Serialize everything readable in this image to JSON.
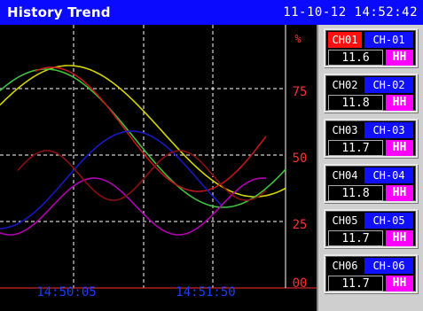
{
  "header": {
    "title": "History Trend",
    "datetime": "11-10-12 14:52:42"
  },
  "plot": {
    "unit": "%",
    "y_ticks": [
      "75",
      "50",
      "25",
      "00"
    ],
    "x_ticks": [
      "14:50:05",
      "14:51:50"
    ],
    "colors": {
      "background": "#000000",
      "grid": "#ffffff",
      "tick_labels": "#ff3030",
      "time_labels": "#1e3cff",
      "series": [
        "#d4d400",
        "#40c040",
        "#c01818",
        "#1818c0",
        "#b000b0",
        "#8a1010"
      ]
    }
  },
  "channels": [
    {
      "id": "CH01",
      "name": "CH-01",
      "value": "11.6",
      "alarm": "HH",
      "active": true
    },
    {
      "id": "CH02",
      "name": "CH-02",
      "value": "11.8",
      "alarm": "HH",
      "active": false
    },
    {
      "id": "CH03",
      "name": "CH-03",
      "value": "11.7",
      "alarm": "HH",
      "active": false
    },
    {
      "id": "CH04",
      "name": "CH-04",
      "value": "11.8",
      "alarm": "HH",
      "active": false
    },
    {
      "id": "CH05",
      "name": "CH-05",
      "value": "11.7",
      "alarm": "HH",
      "active": false
    },
    {
      "id": "CH06",
      "name": "CH-06",
      "value": "11.7",
      "alarm": "HH",
      "active": false
    }
  ]
}
